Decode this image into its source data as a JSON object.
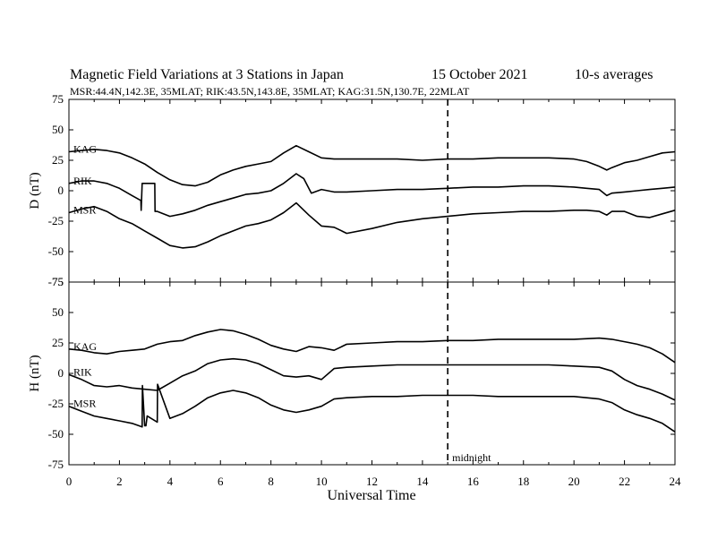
{
  "header": {
    "title": "Magnetic Field Variations at 3 Stations in Japan",
    "date": "15 October 2021",
    "averaging": "10-s averages",
    "stations_line": "MSR:44.4N,142.3E, 35MLAT;  RIK:43.5N,143.8E, 35MLAT;  KAG:31.5N,130.7E, 22MLAT"
  },
  "chart_data": {
    "type": "line",
    "xlabel": "Universal Time",
    "xlim": [
      0,
      24
    ],
    "x_ticks": [
      0,
      2,
      4,
      6,
      8,
      10,
      12,
      14,
      16,
      18,
      20,
      22,
      24
    ],
    "annotations": [
      {
        "x": 15,
        "label": "midnight",
        "style": "dashed vertical line"
      }
    ],
    "panels": [
      {
        "id": "D",
        "ylabel": "D (nT)",
        "ylim": [
          -75,
          75
        ],
        "y_ticks": [
          75,
          50,
          25,
          0,
          -25,
          -50,
          -75
        ],
        "series": [
          {
            "name": "KAG",
            "x": [
              0,
              0.5,
              1,
              1.5,
              2,
              2.5,
              3,
              3.5,
              4,
              4.5,
              5,
              5.5,
              6,
              6.5,
              7,
              7.5,
              8,
              8.5,
              9,
              9.5,
              10,
              10.5,
              11,
              12,
              13,
              14,
              15,
              16,
              17,
              18,
              19,
              20,
              20.5,
              21,
              21.3,
              21.5,
              22,
              22.5,
              23,
              23.5,
              24
            ],
            "y": [
              32,
              33,
              34,
              33,
              31,
              27,
              22,
              15,
              9,
              5,
              4,
              7,
              13,
              17,
              20,
              22,
              24,
              31,
              37,
              32,
              27,
              26,
              26,
              26,
              26,
              25,
              26,
              26,
              27,
              27,
              27,
              26,
              24,
              20,
              17,
              19,
              23,
              25,
              28,
              31,
              32
            ]
          },
          {
            "name": "RIK",
            "x": [
              0,
              0.5,
              1,
              1.5,
              2,
              2.5,
              2.85,
              2.86,
              2.9,
              3.4,
              3.41,
              3.5,
              4,
              4.5,
              5,
              5.5,
              6,
              6.5,
              7,
              7.5,
              8,
              8.5,
              9,
              9.3,
              9.6,
              10,
              10.5,
              11,
              12,
              13,
              14,
              15,
              16,
              17,
              18,
              19,
              20,
              20.5,
              21,
              21.3,
              21.5,
              22,
              22.5,
              23,
              23.5,
              24
            ],
            "y": [
              6,
              8,
              8,
              6,
              2,
              -4,
              -8,
              -16,
              6,
              6,
              -17,
              -17,
              -21,
              -19,
              -16,
              -12,
              -9,
              -6,
              -3,
              -2,
              0,
              6,
              14,
              10,
              -2,
              1,
              -1,
              -1,
              0,
              1,
              1,
              2,
              3,
              3,
              4,
              4,
              3,
              2,
              1,
              -4,
              -2,
              -1,
              0,
              1,
              2,
              3
            ]
          },
          {
            "name": "MSR",
            "x": [
              0,
              0.5,
              1,
              1.5,
              2,
              2.5,
              3,
              3.5,
              4,
              4.5,
              5,
              5.5,
              6,
              6.5,
              7,
              7.5,
              8,
              8.5,
              9,
              9.5,
              10,
              10.5,
              11,
              12,
              13,
              14,
              15,
              16,
              17,
              18,
              19,
              20,
              20.5,
              21,
              21.3,
              21.5,
              22,
              22.5,
              23,
              23.5,
              24
            ],
            "y": [
              -18,
              -15,
              -13,
              -17,
              -23,
              -27,
              -33,
              -39,
              -45,
              -47,
              -46,
              -42,
              -37,
              -33,
              -29,
              -27,
              -24,
              -18,
              -10,
              -20,
              -29,
              -30,
              -35,
              -31,
              -26,
              -23,
              -21,
              -19,
              -18,
              -17,
              -17,
              -16,
              -16,
              -17,
              -20,
              -17,
              -17,
              -21,
              -22,
              -19,
              -16
            ]
          }
        ]
      },
      {
        "id": "H",
        "ylabel": "H (nT)",
        "ylim": [
          -75,
          75
        ],
        "y_ticks": [
          75,
          50,
          25,
          0,
          -25,
          -50,
          -75
        ],
        "series": [
          {
            "name": "KAG",
            "x": [
              0,
              0.5,
              1,
              1.5,
              2,
              2.5,
              3,
              3.5,
              4,
              4.5,
              5,
              5.5,
              6,
              6.5,
              7,
              7.5,
              8,
              8.5,
              9,
              9.5,
              10,
              10.5,
              11,
              12,
              13,
              14,
              15,
              16,
              17,
              18,
              19,
              20,
              21,
              21.5,
              22,
              22.5,
              23,
              23.5,
              24
            ],
            "y": [
              20,
              19,
              17,
              16,
              18,
              19,
              20,
              24,
              26,
              27,
              31,
              34,
              36,
              35,
              32,
              28,
              23,
              20,
              18,
              22,
              21,
              19,
              24,
              25,
              26,
              26,
              27,
              27,
              28,
              28,
              28,
              28,
              29,
              28,
              26,
              24,
              21,
              16,
              9
            ]
          },
          {
            "name": "RIK",
            "x": [
              0,
              0.5,
              1,
              1.5,
              2,
              2.5,
              3,
              3.5,
              4,
              4.5,
              5,
              5.5,
              6,
              6.5,
              7,
              7.5,
              8,
              8.5,
              9,
              9.5,
              10,
              10.5,
              11,
              12,
              13,
              14,
              15,
              16,
              17,
              18,
              19,
              20,
              21,
              21.5,
              22,
              22.5,
              23,
              23.5,
              24
            ],
            "y": [
              -1,
              -5,
              -10,
              -11,
              -10,
              -12,
              -13,
              -14,
              -8,
              -2,
              2,
              8,
              11,
              12,
              11,
              8,
              3,
              -2,
              -3,
              -2,
              -5,
              4,
              5,
              6,
              7,
              7,
              7,
              7,
              7,
              7,
              7,
              6,
              5,
              2,
              -5,
              -10,
              -13,
              -17,
              -22
            ]
          },
          {
            "name": "MSR",
            "x": [
              0,
              0.5,
              1,
              1.5,
              2,
              2.5,
              2.9,
              2.91,
              3.0,
              3.05,
              3.1,
              3.5,
              3.51,
              4,
              4.5,
              5,
              5.5,
              6,
              6.5,
              7,
              7.5,
              8,
              8.5,
              9,
              9.5,
              10,
              10.5,
              11,
              12,
              13,
              14,
              15,
              16,
              17,
              18,
              19,
              20,
              21,
              21.5,
              22,
              22.5,
              23,
              23.5,
              24
            ],
            "y": [
              -27,
              -31,
              -35,
              -37,
              -39,
              -41,
              -44,
              -10,
              -43,
              -43,
              -35,
              -40,
              -9,
              -37,
              -33,
              -27,
              -20,
              -16,
              -14,
              -16,
              -20,
              -26,
              -30,
              -32,
              -30,
              -27,
              -21,
              -20,
              -19,
              -19,
              -18,
              -18,
              -18,
              -19,
              -19,
              -19,
              -19,
              -21,
              -24,
              -30,
              -34,
              -37,
              -41,
              -48
            ]
          }
        ]
      }
    ]
  }
}
